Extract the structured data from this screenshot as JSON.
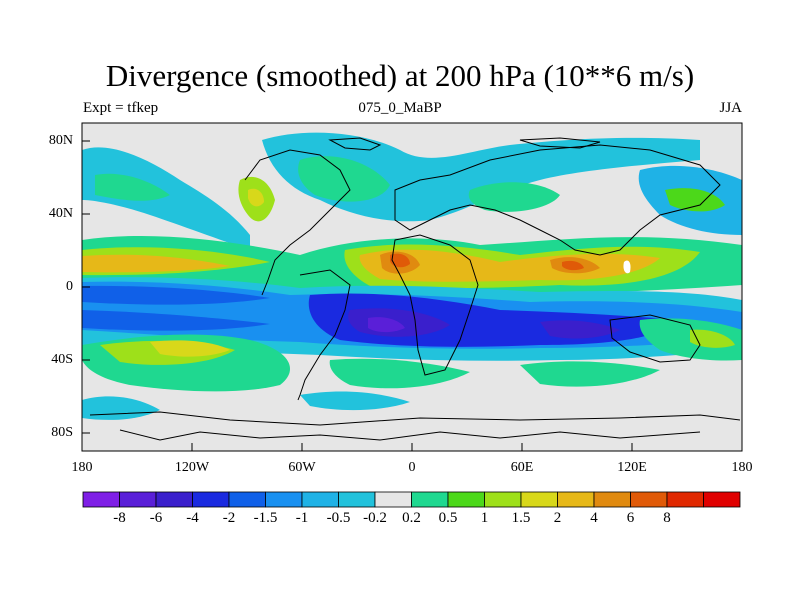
{
  "title": "Divergence (smoothed) at 200 hPa (10**6 m/s)",
  "subtitle_left": "Expt = tfkep",
  "subtitle_center": "075_0_MaBP",
  "subtitle_right": "JJA",
  "lat_labels": [
    "80N",
    "40N",
    "0",
    "40S",
    "80S"
  ],
  "lon_labels": [
    "180",
    "120W",
    "60W",
    "0",
    "60E",
    "120E",
    "180"
  ],
  "colorbar": {
    "colors": [
      "#7f1fe6",
      "#5a1fd8",
      "#3a1fcc",
      "#1a2ae0",
      "#1060e8",
      "#1990f0",
      "#1fb2e6",
      "#22c2dc",
      "#e6e6e6",
      "#1fd890",
      "#4cd81a",
      "#9ee01a",
      "#d8d81a",
      "#e6b818",
      "#e08a10",
      "#e05a08",
      "#e02800",
      "#e00000"
    ],
    "labels": [
      "-8",
      "-6",
      "-4",
      "-2",
      "-1.5",
      "-1",
      "-0.5",
      "-0.2",
      "0.2",
      "0.5",
      "1",
      "1.5",
      "2",
      "4",
      "6",
      "8"
    ]
  }
}
